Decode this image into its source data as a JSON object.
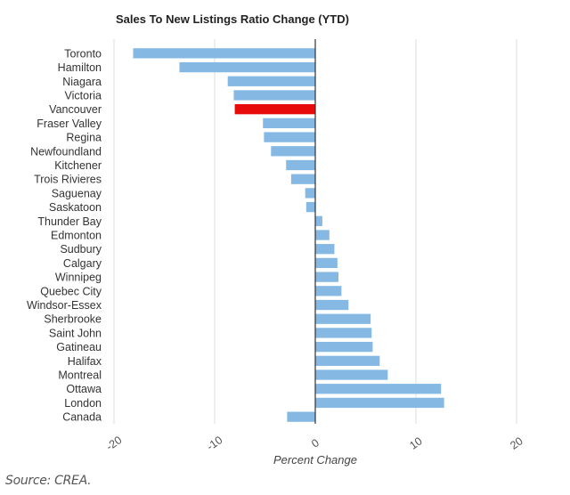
{
  "chart_data": {
    "type": "bar",
    "orientation": "horizontal",
    "title": "Sales To New Listings Ratio Change (YTD)",
    "xlabel": "Percent Change",
    "ylabel": "",
    "xlim": [
      -20,
      20
    ],
    "xticks": [
      -20,
      -10,
      0,
      10,
      20
    ],
    "grid": true,
    "legend": "none",
    "colors": {
      "default": "#85b9e4",
      "highlight": "#e80b0b",
      "zero_line": "#333333",
      "grid": "#dddddd"
    },
    "highlight": "Vancouver",
    "categories": [
      "Toronto",
      "Hamilton",
      "Niagara",
      "Victoria",
      "Vancouver",
      "Fraser Valley",
      "Regina",
      "Newfoundland",
      "Kitchener",
      "Trois Rivieres",
      "Saguenay",
      "Saskatoon",
      "Thunder Bay",
      "Edmonton",
      "Sudbury",
      "Calgary",
      "Winnipeg",
      "Quebec City",
      "Windsor-Essex",
      "Sherbrooke",
      "Saint John",
      "Gatineau",
      "Halifax",
      "Montreal",
      "Ottawa",
      "London",
      "Canada"
    ],
    "values": [
      -18.1,
      -13.5,
      -8.7,
      -8.1,
      -8.0,
      -5.2,
      -5.1,
      -4.4,
      -2.9,
      -2.4,
      -1.0,
      -0.9,
      0.7,
      1.4,
      1.9,
      2.2,
      2.3,
      2.6,
      3.3,
      5.5,
      5.6,
      5.7,
      6.4,
      7.2,
      12.5,
      12.8,
      -2.8
    ]
  },
  "source": "Source: CREA."
}
